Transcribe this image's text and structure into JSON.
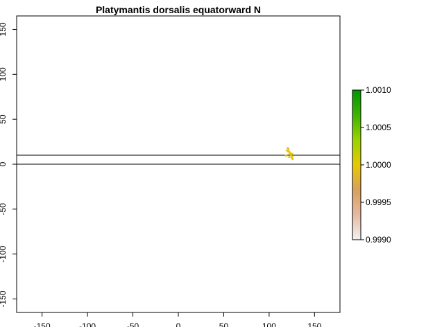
{
  "chart_data": {
    "type": "raster-map",
    "title": "Platymantis dorsalis equatorward N",
    "xlabel": "",
    "ylabel": "",
    "xlim": [
      -178,
      178
    ],
    "ylim": [
      -165,
      165
    ],
    "x_ticks": [
      -150,
      -100,
      -50,
      0,
      50,
      100,
      150
    ],
    "y_ticks": [
      -150,
      -100,
      -50,
      0,
      50,
      100,
      150
    ],
    "hlines": [
      0,
      10
    ],
    "legend": {
      "position": "right",
      "min": 0.999,
      "max": 1.001,
      "ticks": [
        "0.9990",
        "0.9995",
        "1.0000",
        "1.0005",
        "1.0010"
      ],
      "tick_values": [
        0.999,
        0.9995,
        1.0,
        1.0005,
        1.001
      ],
      "colors": [
        "#f2f2f2",
        "#e6b8a2",
        "#d9a05a",
        "#e6c800",
        "#99d400",
        "#3cb400",
        "#009600"
      ]
    },
    "cells": [
      {
        "lon": 119.5,
        "lat": 15.5,
        "value": 0.99992
      },
      {
        "lon": 120.5,
        "lat": 18.0,
        "value": 0.99992
      },
      {
        "lon": 121.5,
        "lat": 16.5,
        "value": 0.99997
      },
      {
        "lon": 120.5,
        "lat": 14.5,
        "value": 0.99995
      },
      {
        "lon": 121.5,
        "lat": 14.0,
        "value": 0.99996
      },
      {
        "lon": 122.5,
        "lat": 13.5,
        "value": 0.99996
      },
      {
        "lon": 123.5,
        "lat": 12.5,
        "value": 0.99996
      },
      {
        "lon": 122.5,
        "lat": 11.5,
        "value": 0.99997
      },
      {
        "lon": 123.5,
        "lat": 11.0,
        "value": 0.99996
      },
      {
        "lon": 124.5,
        "lat": 10.5,
        "value": 0.99997
      },
      {
        "lon": 125.5,
        "lat": 11.5,
        "value": 0.99997
      },
      {
        "lon": 124.5,
        "lat": 9.5,
        "value": 0.99997
      },
      {
        "lon": 125.5,
        "lat": 8.5,
        "value": 0.99997
      },
      {
        "lon": 124.5,
        "lat": 7.5,
        "value": 0.99997
      },
      {
        "lon": 125.5,
        "lat": 6.5,
        "value": 0.99997
      },
      {
        "lon": 126.0,
        "lat": 5.5,
        "value": 0.99999
      },
      {
        "lon": 122.0,
        "lat": 8.0,
        "value": 0.99995
      },
      {
        "lon": 118.5,
        "lat": 9.5,
        "value": 0.99994
      }
    ]
  }
}
